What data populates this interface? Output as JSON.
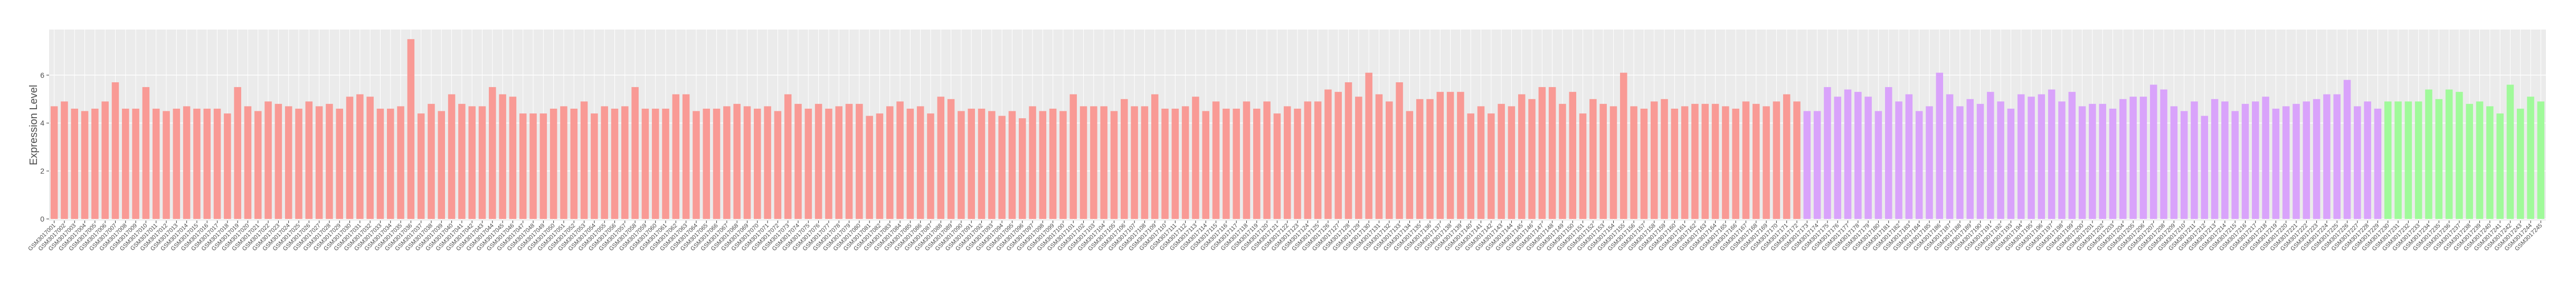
{
  "chart_data": {
    "type": "bar",
    "y_label": "Expression Level",
    "ylim": [
      0,
      7.9
    ],
    "yticks": [
      0,
      2,
      4,
      6
    ],
    "grid": true,
    "series": [
      {
        "color": "#f99a95",
        "categories": [
          "GSM3017001",
          "GSM3017002",
          "GSM3017003",
          "GSM3017004",
          "GSM3017005",
          "GSM3017006",
          "GSM3017007",
          "GSM3017008",
          "GSM3017009",
          "GSM3017010",
          "GSM3017011",
          "GSM3017012",
          "GSM3017013",
          "GSM3017014",
          "GSM3017015",
          "GSM3017016",
          "GSM3017017",
          "GSM3017018",
          "GSM3017019",
          "GSM3017020",
          "GSM3017021",
          "GSM3017022",
          "GSM3017023",
          "GSM3017024",
          "GSM3017025",
          "GSM3017026",
          "GSM3017027",
          "GSM3017028",
          "GSM3017029",
          "GSM3017030",
          "GSM3017031",
          "GSM3017032",
          "GSM3017033",
          "GSM3017034",
          "GSM3017035",
          "GSM3017036",
          "GSM3017037",
          "GSM3017038",
          "GSM3017039",
          "GSM3017040",
          "GSM3017041",
          "GSM3017042",
          "GSM3017043",
          "GSM3017044",
          "GSM3017045",
          "GSM3017046",
          "GSM3017047",
          "GSM3017048",
          "GSM3017049",
          "GSM3017050",
          "GSM3017051",
          "GSM3017052",
          "GSM3017053",
          "GSM3017054",
          "GSM3017055",
          "GSM3017056",
          "GSM3017057",
          "GSM3017058",
          "GSM3017059",
          "GSM3017060",
          "GSM3017061",
          "GSM3017062",
          "GSM3017063",
          "GSM3017064",
          "GSM3017065",
          "GSM3017066",
          "GSM3017067",
          "GSM3017068",
          "GSM3017069",
          "GSM3017070",
          "GSM3017071",
          "GSM3017072",
          "GSM3017073",
          "GSM3017074",
          "GSM3017075",
          "GSM3017076",
          "GSM3017077",
          "GSM3017078",
          "GSM3017079",
          "GSM3017080",
          "GSM3017081",
          "GSM3017082",
          "GSM3017083",
          "GSM3017084",
          "GSM3017085",
          "GSM3017086",
          "GSM3017087",
          "GSM3017088",
          "GSM3017089",
          "GSM3017090",
          "GSM3017091",
          "GSM3017092",
          "GSM3017093",
          "GSM3017094",
          "GSM3017095",
          "GSM3017096",
          "GSM3017097",
          "GSM3017098",
          "GSM3017099",
          "GSM3017100",
          "GSM3017101",
          "GSM3017102",
          "GSM3017103",
          "GSM3017104",
          "GSM3017105",
          "GSM3017106",
          "GSM3017107",
          "GSM3017108",
          "GSM3017109",
          "GSM3017110",
          "GSM3017111",
          "GSM3017112",
          "GSM3017113",
          "GSM3017114",
          "GSM3017115",
          "GSM3017116",
          "GSM3017117",
          "GSM3017118",
          "GSM3017119",
          "GSM3017120",
          "GSM3017121",
          "GSM3017122",
          "GSM3017123",
          "GSM3017124",
          "GSM3017125",
          "GSM3017126",
          "GSM3017127",
          "GSM3017128",
          "GSM3017129",
          "GSM3017130",
          "GSM3017131",
          "GSM3017132",
          "GSM3017133",
          "GSM3017134",
          "GSM3017135",
          "GSM3017136",
          "GSM3017137",
          "GSM3017138",
          "GSM3017139",
          "GSM3017140",
          "GSM3017141",
          "GSM3017142",
          "GSM3017143",
          "GSM3017144",
          "GSM3017145",
          "GSM3017146",
          "GSM3017147",
          "GSM3017148",
          "GSM3017149",
          "GSM3017150",
          "GSM3017151",
          "GSM3017152",
          "GSM3017153",
          "GSM3017154",
          "GSM3017155",
          "GSM3017156",
          "GSM3017157",
          "GSM3017158",
          "GSM3017159",
          "GSM3017160",
          "GSM3017161",
          "GSM3017162",
          "GSM3017163",
          "GSM3017164",
          "GSM3017165",
          "GSM3017166",
          "GSM3017167",
          "GSM3017168",
          "GSM3017169",
          "GSM3017170",
          "GSM3017171",
          "GSM3017172"
        ],
        "values": [
          4.7,
          4.9,
          4.6,
          4.5,
          4.6,
          4.9,
          5.7,
          4.6,
          4.6,
          5.5,
          4.6,
          4.5,
          4.6,
          4.7,
          4.6,
          4.6,
          4.6,
          4.4,
          5.5,
          4.7,
          4.5,
          4.9,
          4.8,
          4.7,
          4.6,
          4.9,
          4.7,
          4.8,
          4.6,
          5.1,
          5.2,
          5.1,
          4.6,
          4.6,
          4.7,
          7.5,
          4.4,
          4.8,
          4.5,
          5.2,
          4.8,
          4.7,
          4.7,
          5.5,
          5.2,
          5.1,
          4.4,
          4.4,
          4.4,
          4.6,
          4.7,
          4.6,
          4.9,
          4.4,
          4.7,
          4.6,
          4.7,
          5.5,
          4.6,
          4.6,
          4.6,
          5.2,
          5.2,
          4.5,
          4.6,
          4.6,
          4.7,
          4.8,
          4.7,
          4.6,
          4.7,
          4.5,
          5.2,
          4.8,
          4.6,
          4.8,
          4.6,
          4.7,
          4.8,
          4.8,
          4.3,
          4.4,
          4.7,
          4.9,
          4.6,
          4.7,
          4.4,
          5.1,
          5.0,
          4.5,
          4.6,
          4.6,
          4.5,
          4.3,
          4.5,
          4.2,
          4.7,
          4.5,
          4.6,
          4.5,
          5.2,
          4.7,
          4.7,
          4.7,
          4.5,
          5.0,
          4.7,
          4.7,
          5.2,
          4.6,
          4.6,
          4.7,
          5.1,
          4.5,
          4.9,
          4.6,
          4.6,
          4.9,
          4.6,
          4.9,
          4.4,
          4.7,
          4.6,
          4.9,
          4.9,
          5.4,
          5.3,
          5.7,
          5.1,
          6.1,
          5.2,
          4.9,
          5.7,
          4.5,
          5.0,
          5.0,
          5.3,
          5.3,
          5.3,
          4.4,
          4.7,
          4.4,
          4.8,
          4.7,
          5.2,
          5.0,
          5.5,
          5.5,
          4.8,
          5.3,
          4.4,
          5.0,
          4.8,
          4.7,
          6.1,
          4.7,
          4.6,
          4.9,
          5.0,
          4.6,
          4.7,
          4.8,
          4.8,
          4.8,
          4.7,
          4.6,
          4.9,
          4.8,
          4.7,
          4.9,
          5.2,
          4.9
        ]
      },
      {
        "color": "#d9a3fb",
        "categories": [
          "GSM3017173",
          "GSM3017174",
          "GSM3017175",
          "GSM3017176",
          "GSM3017177",
          "GSM3017178",
          "GSM3017179",
          "GSM3017180",
          "GSM3017181",
          "GSM3017182",
          "GSM3017183",
          "GSM3017184",
          "GSM3017185",
          "GSM3017186",
          "GSM3017187",
          "GSM3017188",
          "GSM3017189",
          "GSM3017190",
          "GSM3017191",
          "GSM3017192",
          "GSM3017193",
          "GSM3017194",
          "GSM3017195",
          "GSM3017196",
          "GSM3017197",
          "GSM3017198",
          "GSM3017199",
          "GSM3017200",
          "GSM3017201",
          "GSM3017202",
          "GSM3017203",
          "GSM3017204",
          "GSM3017205",
          "GSM3017206",
          "GSM3017207",
          "GSM3017208",
          "GSM3017209",
          "GSM3017210",
          "GSM3017211",
          "GSM3017212",
          "GSM3017213",
          "GSM3017214",
          "GSM3017215",
          "GSM3017216",
          "GSM3017217",
          "GSM3017218",
          "GSM3017219",
          "GSM3017220",
          "GSM3017221",
          "GSM3017222",
          "GSM3017223",
          "GSM3017224",
          "GSM3017225",
          "GSM3017226",
          "GSM3017227",
          "GSM3017228",
          "GSM3017229"
        ],
        "values": [
          4.5,
          4.5,
          5.5,
          5.1,
          5.4,
          5.3,
          5.1,
          4.5,
          5.5,
          4.9,
          5.2,
          4.5,
          4.7,
          6.1,
          5.2,
          4.7,
          5.0,
          4.8,
          5.3,
          4.9,
          4.6,
          5.2,
          5.1,
          5.2,
          5.4,
          4.9,
          5.3,
          4.7,
          4.8,
          4.8,
          4.6,
          5.0,
          5.1,
          5.1,
          5.6,
          5.4,
          4.7,
          4.5,
          4.9,
          4.3,
          5.0,
          4.9,
          4.5,
          4.8,
          4.9,
          5.1,
          4.6,
          4.7,
          4.8,
          4.9,
          5.0,
          5.2,
          5.2,
          5.8,
          4.7,
          4.9,
          4.6
        ]
      },
      {
        "color": "#a0fa9a",
        "categories": [
          "GSM3017230",
          "GSM3017231",
          "GSM3017232",
          "GSM3017233",
          "GSM3017234",
          "GSM3017235",
          "GSM3017236",
          "GSM3017237",
          "GSM3017238",
          "GSM3017239",
          "GSM3017240",
          "GSM3017241",
          "GSM3017242",
          "GSM3017243",
          "GSM3017244",
          "GSM3017245"
        ],
        "values": [
          4.9,
          4.9,
          4.9,
          4.9,
          5.4,
          5.0,
          5.4,
          5.3,
          4.8,
          4.9,
          4.7,
          4.4,
          5.6,
          4.6,
          5.1,
          4.9
        ]
      }
    ]
  }
}
